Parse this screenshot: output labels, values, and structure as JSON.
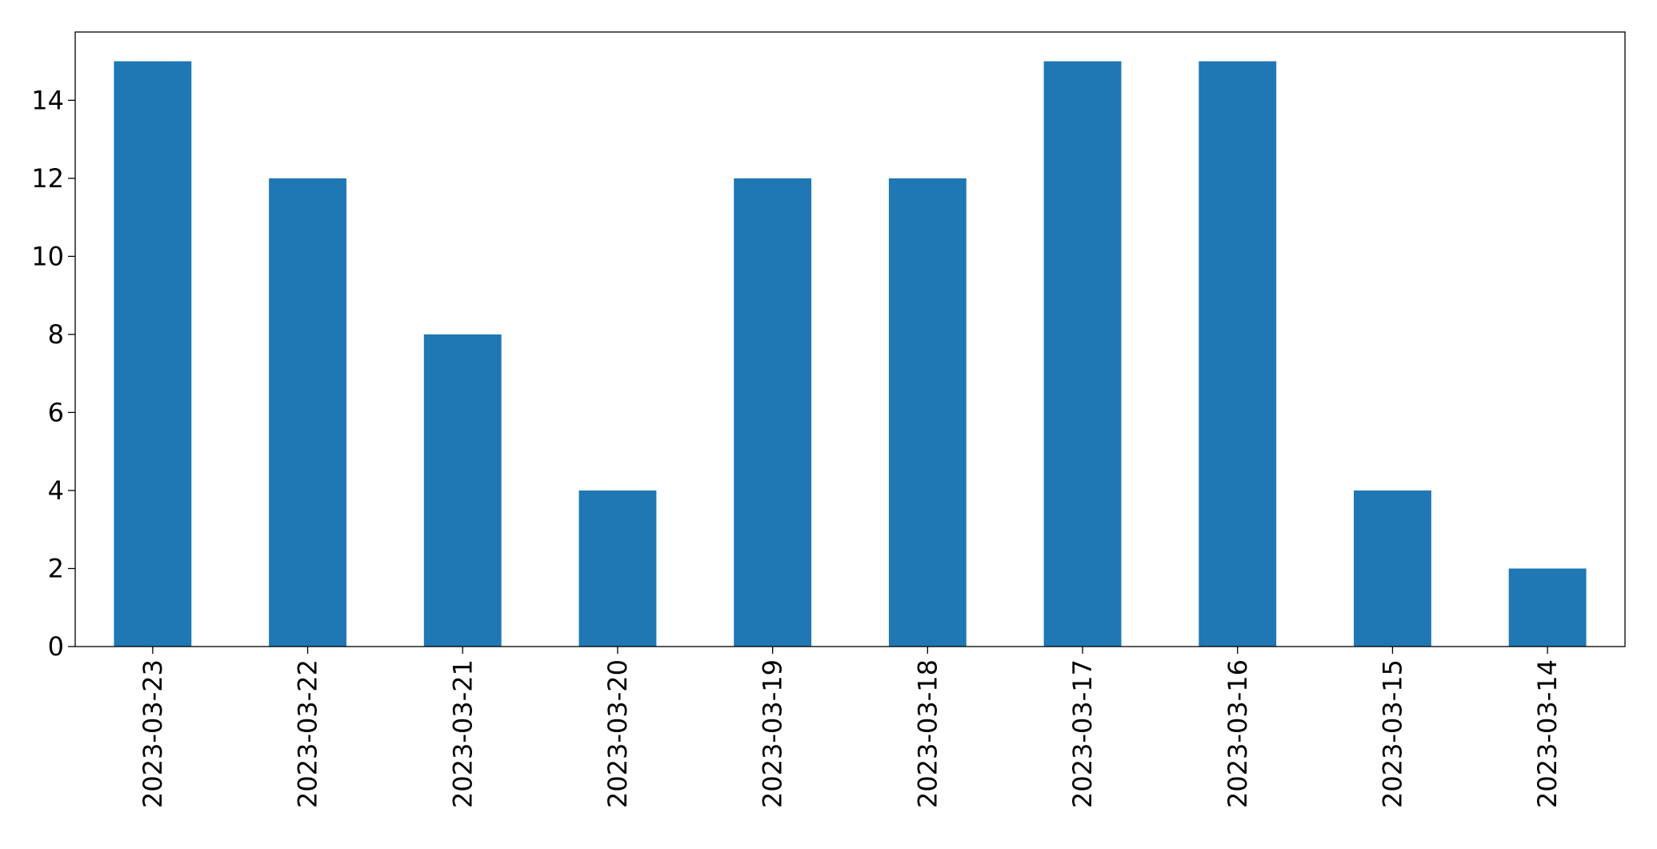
{
  "chart_data": {
    "type": "bar",
    "categories": [
      "2023-03-23",
      "2023-03-22",
      "2023-03-21",
      "2023-03-20",
      "2023-03-19",
      "2023-03-18",
      "2023-03-17",
      "2023-03-16",
      "2023-03-15",
      "2023-03-14"
    ],
    "values": [
      15,
      12,
      8,
      4,
      12,
      12,
      15,
      15,
      4,
      2
    ],
    "color": "#1f77b4",
    "ylim": [
      0,
      15.75
    ],
    "yticks": [
      0,
      2,
      4,
      6,
      8,
      10,
      12,
      14
    ],
    "grid": false
  }
}
